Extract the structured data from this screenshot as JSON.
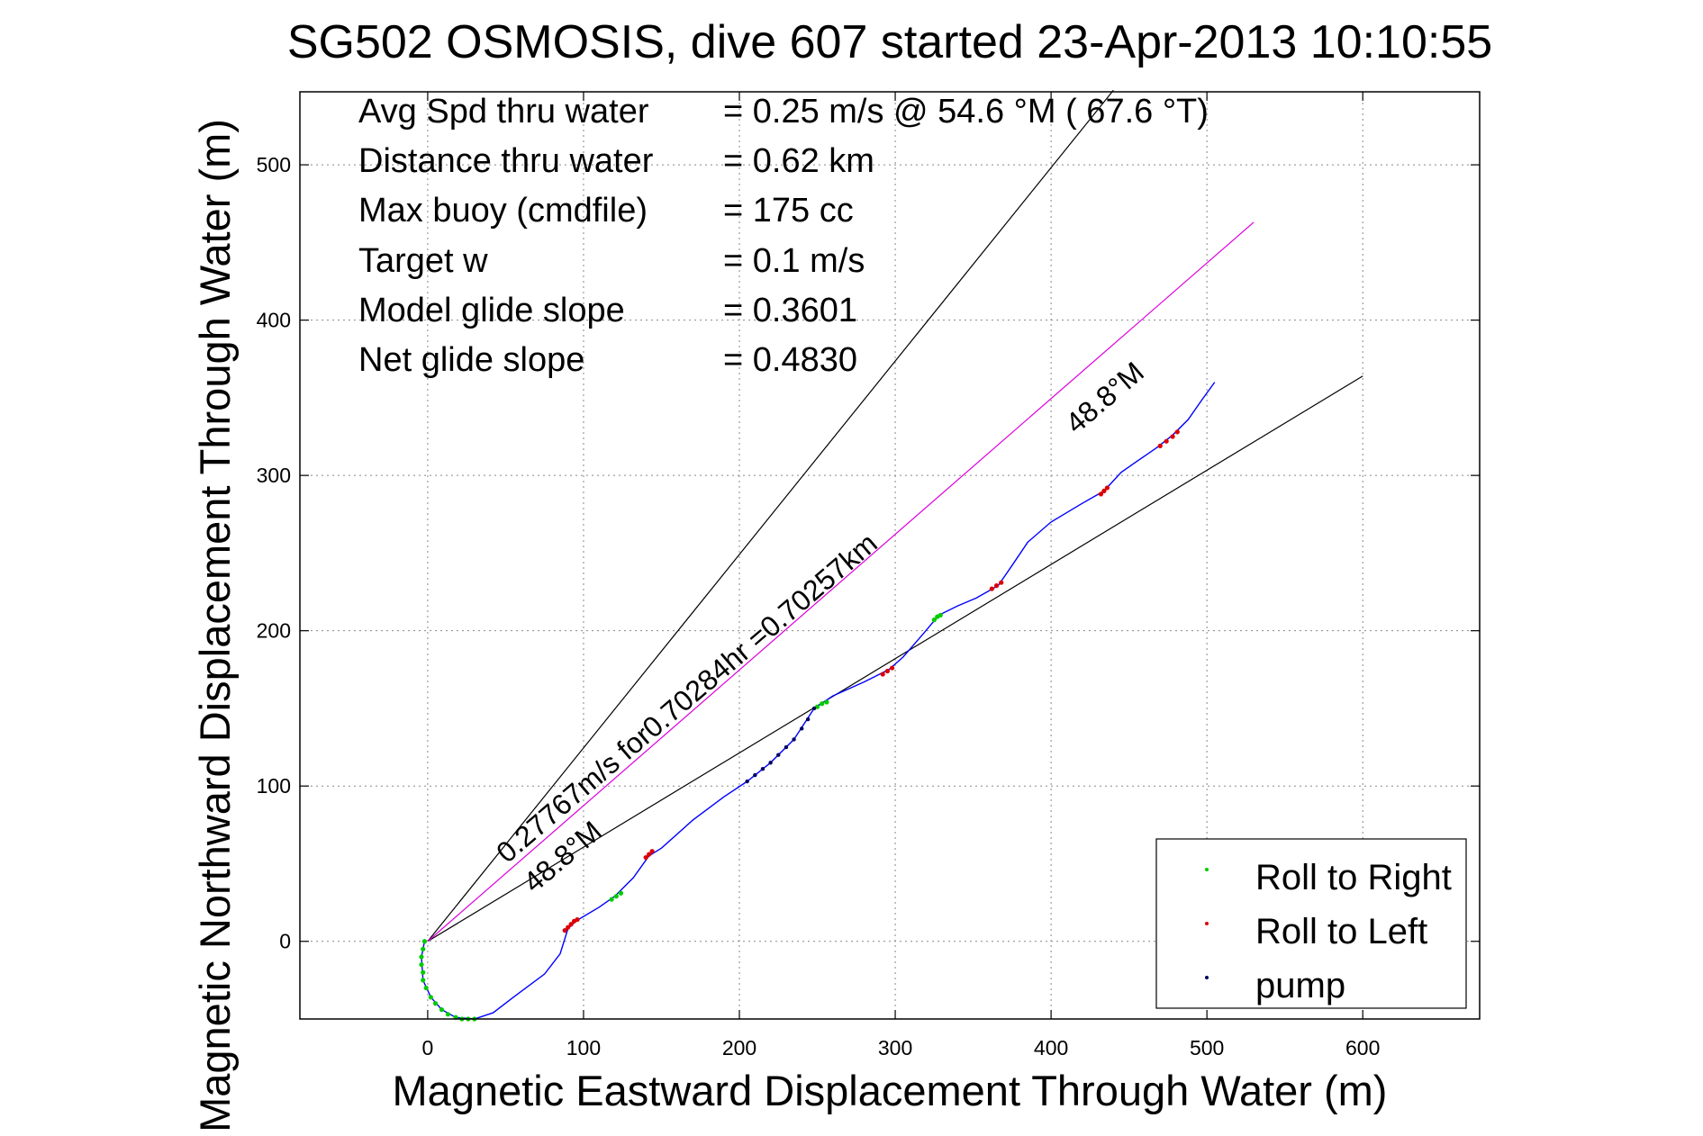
{
  "chart_data": {
    "type": "line",
    "title": "SG502 OSMOSIS, dive 607 started 23-Apr-2013 10:10:55",
    "xlabel": "Magnetic Eastward Displacement Through Water (m)",
    "ylabel": "Magnetic Northward Displacement Through Water (m)",
    "xlim": [
      -82,
      675
    ],
    "ylim": [
      -50,
      547
    ],
    "xticks": [
      0,
      100,
      200,
      300,
      400,
      500,
      600
    ],
    "yticks": [
      0,
      100,
      200,
      300,
      400,
      500
    ],
    "grid": true,
    "legend_position": "bottom-right",
    "info_lines": [
      {
        "label": "Avg Spd thru water",
        "value": "=  0.25 m/s @  54.6 °M ( 67.6 °T)"
      },
      {
        "label": "Distance thru water",
        "value": "=  0.62 km"
      },
      {
        "label": "Max buoy (cmdfile)",
        "value": "= 175 cc"
      },
      {
        "label": "Target w",
        "value": "= 0.1 m/s"
      },
      {
        "label": "Model glide slope",
        "value": "= 0.3601"
      },
      {
        "label": "Net glide slope",
        "value": "= 0.4830"
      }
    ],
    "annotations": {
      "speed_label": "0.27767m/s for0.70284hr =0.70257km",
      "heading_label_lower": "48.8°M",
      "heading_label_upper": "48.8°M"
    },
    "reference_lines": [
      {
        "name": "upper-bound-line",
        "color": "#000000",
        "points": [
          [
            0,
            0
          ],
          [
            440,
            548
          ]
        ]
      },
      {
        "name": "lower-bound-line",
        "color": "#000000",
        "points": [
          [
            0,
            0
          ],
          [
            600,
            364
          ]
        ]
      },
      {
        "name": "heading-line",
        "color": "#dd00dd",
        "points": [
          [
            0,
            0
          ],
          [
            530,
            463
          ]
        ]
      }
    ],
    "series": [
      {
        "name": "track",
        "color": "#0000ff",
        "points": [
          [
            -2,
            0
          ],
          [
            -4,
            -10
          ],
          [
            -3,
            -25
          ],
          [
            2,
            -36
          ],
          [
            9,
            -44
          ],
          [
            18,
            -49
          ],
          [
            30,
            -50
          ],
          [
            42,
            -46
          ],
          [
            55,
            -36
          ],
          [
            75,
            -21
          ],
          [
            85,
            -8
          ],
          [
            90,
            8
          ],
          [
            95,
            13
          ],
          [
            110,
            22
          ],
          [
            120,
            29
          ],
          [
            132,
            41
          ],
          [
            142,
            55
          ],
          [
            150,
            60
          ],
          [
            170,
            78
          ],
          [
            190,
            93
          ],
          [
            205,
            103
          ],
          [
            220,
            115
          ],
          [
            235,
            130
          ],
          [
            248,
            150
          ],
          [
            260,
            158
          ],
          [
            280,
            167
          ],
          [
            296,
            175
          ],
          [
            305,
            183
          ],
          [
            318,
            198
          ],
          [
            328,
            210
          ],
          [
            340,
            216
          ],
          [
            352,
            221
          ],
          [
            366,
            229
          ],
          [
            375,
            242
          ],
          [
            385,
            257
          ],
          [
            400,
            270
          ],
          [
            420,
            282
          ],
          [
            434,
            290
          ],
          [
            445,
            302
          ],
          [
            455,
            309
          ],
          [
            468,
            318
          ],
          [
            478,
            326
          ],
          [
            488,
            336
          ],
          [
            497,
            349
          ],
          [
            505,
            360
          ]
        ]
      },
      {
        "name": "Roll to Right",
        "color": "#00cc00",
        "points": [
          [
            -2,
            0
          ],
          [
            -3,
            -5
          ],
          [
            -4,
            -10
          ],
          [
            -4,
            -15
          ],
          [
            -3,
            -20
          ],
          [
            -3,
            -25
          ],
          [
            -1,
            -30
          ],
          [
            2,
            -36
          ],
          [
            5,
            -40
          ],
          [
            9,
            -44
          ],
          [
            13,
            -47
          ],
          [
            18,
            -49
          ],
          [
            22,
            -50
          ],
          [
            26,
            -50
          ],
          [
            30,
            -50
          ],
          [
            118,
            27
          ],
          [
            121,
            29
          ],
          [
            124,
            31
          ],
          [
            250,
            151
          ],
          [
            253,
            153
          ],
          [
            256,
            154
          ],
          [
            325,
            207
          ],
          [
            327,
            209
          ],
          [
            329,
            210
          ]
        ]
      },
      {
        "name": "Roll to Left",
        "color": "#dd0000",
        "points": [
          [
            88,
            7
          ],
          [
            90,
            9
          ],
          [
            92,
            11
          ],
          [
            94,
            13
          ],
          [
            96,
            14
          ],
          [
            140,
            54
          ],
          [
            142,
            56
          ],
          [
            144,
            58
          ],
          [
            292,
            172
          ],
          [
            295,
            174
          ],
          [
            298,
            176
          ],
          [
            362,
            227
          ],
          [
            365,
            229
          ],
          [
            368,
            231
          ],
          [
            432,
            288
          ],
          [
            434,
            290
          ],
          [
            436,
            292
          ],
          [
            470,
            319
          ],
          [
            474,
            322
          ],
          [
            478,
            325
          ],
          [
            481,
            328
          ]
        ]
      },
      {
        "name": "pump",
        "color": "#000060",
        "points": [
          [
            205,
            103
          ],
          [
            210,
            107
          ],
          [
            215,
            111
          ],
          [
            220,
            115
          ],
          [
            225,
            120
          ],
          [
            230,
            125
          ],
          [
            235,
            130
          ],
          [
            240,
            137
          ],
          [
            244,
            143
          ],
          [
            248,
            150
          ]
        ]
      }
    ]
  }
}
